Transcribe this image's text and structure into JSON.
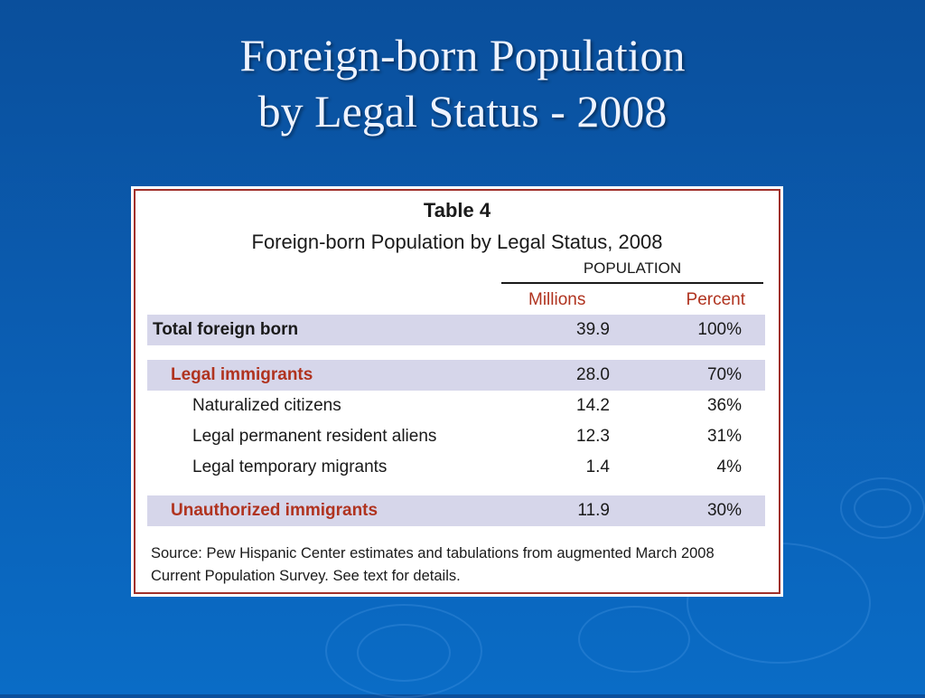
{
  "slide": {
    "title_line1": "Foreign-born Population",
    "title_line2": "by Legal Status - 2008"
  },
  "table": {
    "title": "Table 4",
    "subtitle": "Foreign-born Population by Legal Status, 2008",
    "group_header": "POPULATION",
    "col_millions": "Millions",
    "col_percent": "Percent",
    "rows": [
      {
        "label": "Total foreign born",
        "millions": "39.9",
        "percent": "100%"
      },
      {
        "label": "Legal immigrants",
        "millions": "28.0",
        "percent": "70%"
      },
      {
        "label": "Naturalized citizens",
        "millions": "14.2",
        "percent": "36%"
      },
      {
        "label": "Legal permanent resident aliens",
        "millions": "12.3",
        "percent": "31%"
      },
      {
        "label": "Legal temporary migrants",
        "millions": "1.4",
        "percent": "4%"
      },
      {
        "label": "Unauthorized immigrants",
        "millions": "11.9",
        "percent": "30%"
      }
    ],
    "source_line1": "Source:  Pew Hispanic Center estimates and tabulations from augmented March 2008",
    "source_line2": "Current Population Survey.  See text for details."
  },
  "colors": {
    "background": "#0b5cb0",
    "accent_red": "#b0331f",
    "row_shade": "#d6d6ea"
  }
}
